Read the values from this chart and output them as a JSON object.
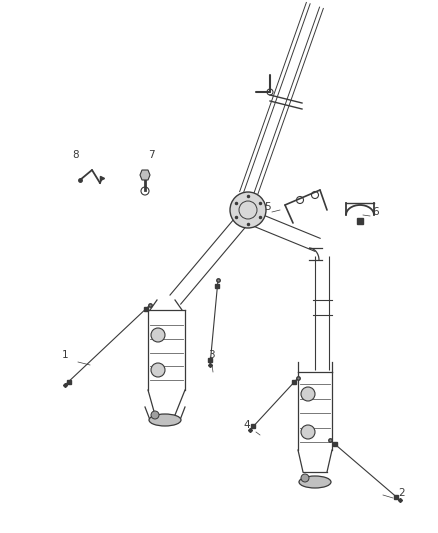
{
  "bg_color": "#ffffff",
  "fig_width": 4.38,
  "fig_height": 5.33,
  "dpi": 100,
  "line_color": "#3a3a3a",
  "label_color": "#3a3a3a",
  "part_label_fontsize": 7.5,
  "pipe_lw": 1.3,
  "cat_lw": 1.0,
  "sensor_lw": 0.8,
  "leader_lw": 0.5
}
